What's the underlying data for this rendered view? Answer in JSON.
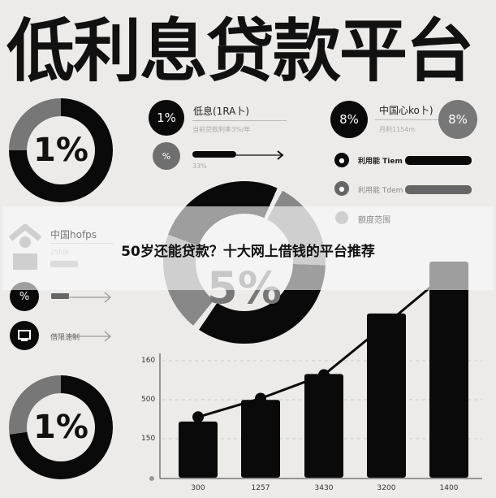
{
  "title": "低利息贷款平台",
  "banner": "50岁还能贷款？十大网上借钱的平台推荐",
  "donut_top_left": {
    "label": "1%",
    "gray_share_percent": 25
  },
  "donut_center": {
    "label": "5%"
  },
  "donut_bottom_left": {
    "label": "1%",
    "gray_share_percent": 25
  },
  "stat1": {
    "badge": "1%",
    "title": "低息(1RA卜)",
    "sub": "当前贷款利率3%/年"
  },
  "stat2": {
    "badge": "%",
    "sub": "33%"
  },
  "stat3": {
    "badge": "8%",
    "title": "中国心ko卜)",
    "sub": "月利1154m",
    "badge2": "8%"
  },
  "list_right": [
    {
      "label": "利用能 Tiem"
    },
    {
      "label": "利用能 Tdem"
    },
    {
      "label": "额度范围"
    }
  ],
  "list_left": {
    "title": "中国hofps",
    "sub": "25fdk",
    "row2_badge": "%",
    "row3_label": "借限速制"
  },
  "chart": {
    "y_ticks": [
      "160",
      "500",
      "150"
    ],
    "x_ticks": [
      "300",
      "1257",
      "3430",
      "3200",
      "1400"
    ],
    "bar_levels_percent": [
      26,
      36,
      48,
      76,
      100
    ],
    "line_levels_percent": [
      36,
      47,
      61,
      90,
      121
    ]
  },
  "colors": {
    "black": "#0a0a0a",
    "gray": "#777777",
    "background": "#ecebe9"
  }
}
